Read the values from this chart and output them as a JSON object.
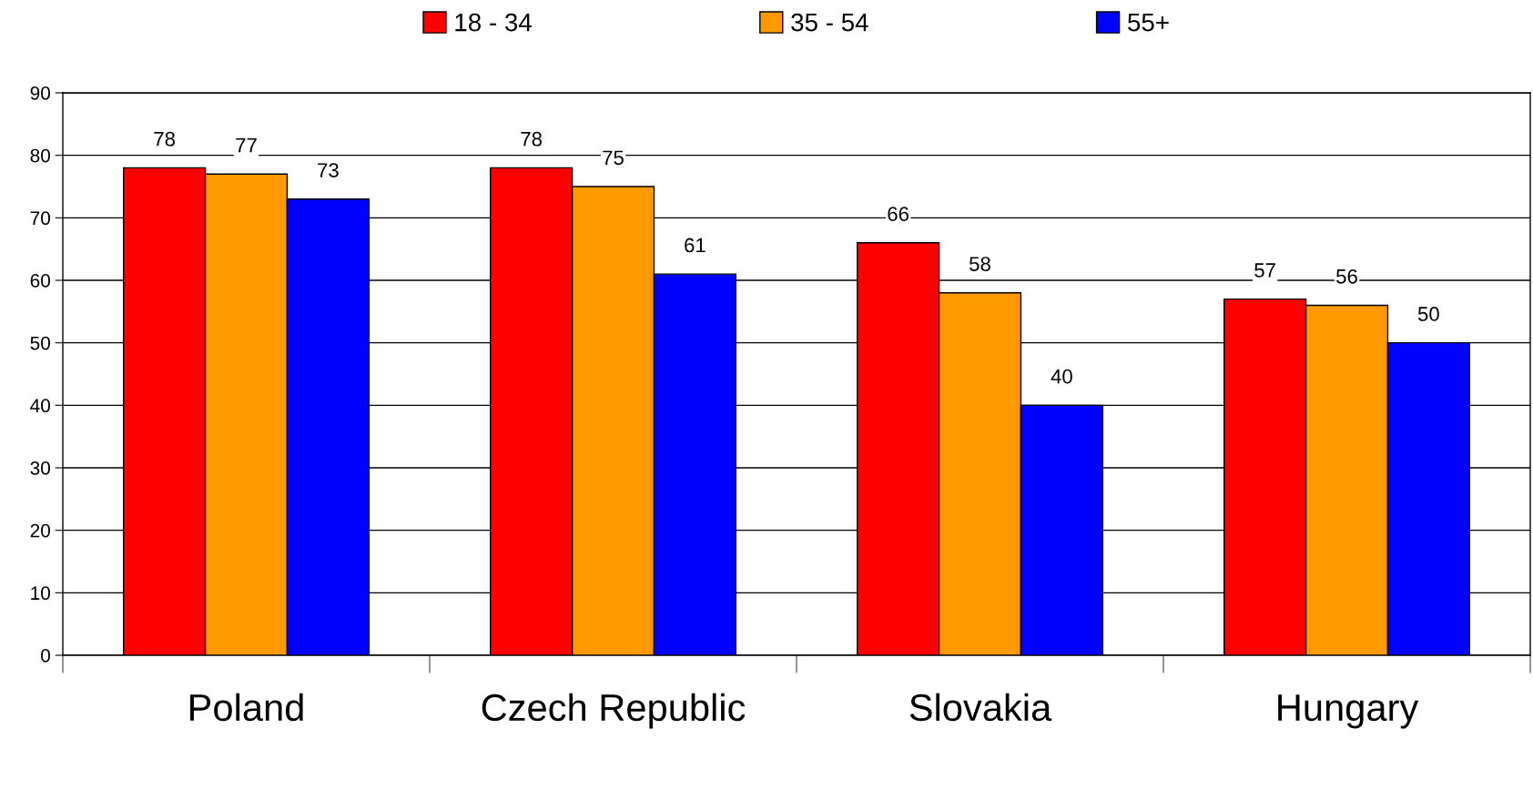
{
  "chart_data": {
    "type": "bar",
    "categories": [
      "Poland",
      "Czech Republic",
      "Slovakia",
      "Hungary"
    ],
    "series": [
      {
        "name": "18 - 34",
        "color": "#ff0000",
        "values": [
          78,
          78,
          66,
          57
        ]
      },
      {
        "name": "35 - 54",
        "color": "#ff9900",
        "values": [
          77,
          75,
          58,
          56
        ]
      },
      {
        "name": "55+",
        "color": "#0000ff",
        "values": [
          73,
          61,
          40,
          50
        ]
      }
    ],
    "ylim": [
      0,
      90
    ],
    "yticks": [
      0,
      10,
      20,
      30,
      40,
      50,
      60,
      70,
      80,
      90
    ],
    "grid": "y",
    "legend": "top",
    "data_labels": true
  }
}
